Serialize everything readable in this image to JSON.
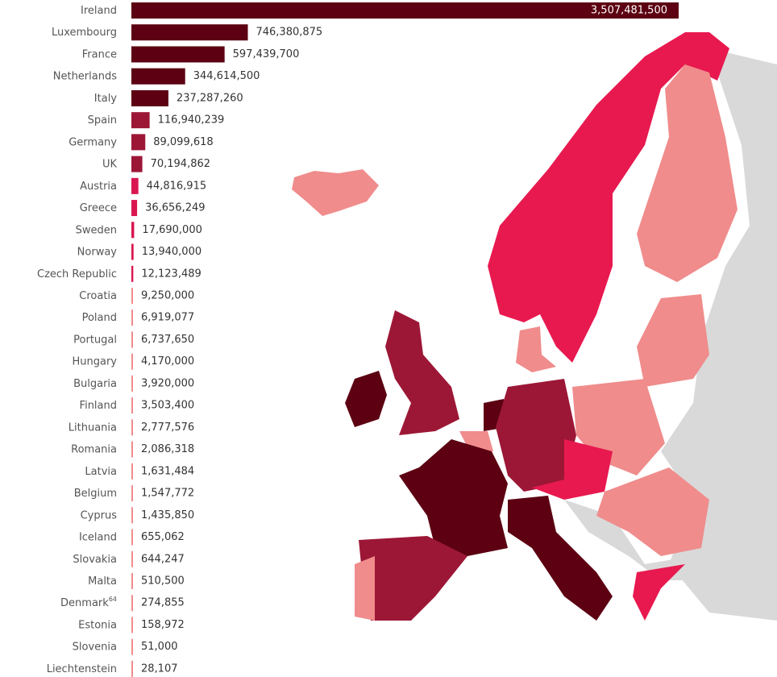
{
  "chart_data": {
    "type": "bar",
    "orientation": "horizontal",
    "categories": [
      "Ireland",
      "Luxembourg",
      "France",
      "Netherlands",
      "Italy",
      "Spain",
      "Germany",
      "UK",
      "Austria",
      "Greece",
      "Sweden",
      "Norway",
      "Czech Republic",
      "Croatia",
      "Poland",
      "Portugal",
      "Hungary",
      "Bulgaria",
      "Finland",
      "Lithuania",
      "Romania",
      "Latvia",
      "Belgium",
      "Cyprus",
      "Iceland",
      "Slovakia",
      "Malta",
      "Denmark",
      "Estonia",
      "Slovenia",
      "Liechtenstein"
    ],
    "category_notes": [
      null,
      null,
      null,
      null,
      null,
      null,
      null,
      null,
      null,
      null,
      null,
      null,
      null,
      null,
      null,
      null,
      null,
      null,
      null,
      null,
      null,
      null,
      null,
      null,
      null,
      null,
      null,
      "64",
      null,
      null,
      null
    ],
    "values": [
      3507481500,
      746380875,
      597439700,
      344614500,
      237287260,
      116940239,
      89099618,
      70194862,
      44816915,
      36656249,
      17690000,
      13940000,
      12123489,
      9250000,
      6919077,
      6737650,
      4170000,
      3920000,
      3503400,
      2777576,
      2086318,
      1631484,
      1547772,
      1435850,
      655062,
      644247,
      510500,
      274855,
      158972,
      51000,
      28107
    ],
    "value_labels": [
      "3,507,481,500",
      "746,380,875",
      "597,439,700",
      "344,614,500",
      "237,287,260",
      "116,940,239",
      "89,099,618",
      "70,194,862",
      "44,816,915",
      "36,656,249",
      "17,690,000",
      "13,940,000",
      "12,123,489",
      "9,250,000",
      "6,919,077",
      "6,737,650",
      "4,170,000",
      "3,920,000",
      "3,503,400",
      "2,777,576",
      "2,086,318",
      "1,631,484",
      "1,547,772",
      "1,435,850",
      "655,062",
      "644,247",
      "510,500",
      "274,855",
      "158,972",
      "51,000",
      "28,107"
    ],
    "colors": [
      "#5c0012",
      "#5c0012",
      "#5c0012",
      "#5c0012",
      "#5c0012",
      "#9c1736",
      "#9c1736",
      "#9c1736",
      "#d9164f",
      "#d9164f",
      "#d9164f",
      "#d9164f",
      "#d9164f",
      "#f08c8c",
      "#f08c8c",
      "#f08c8c",
      "#f08c8c",
      "#f08c8c",
      "#f08c8c",
      "#f08c8c",
      "#f08c8c",
      "#f08c8c",
      "#f08c8c",
      "#f08c8c",
      "#f08c8c",
      "#f08c8c",
      "#f08c8c",
      "#f08c8c",
      "#f08c8c",
      "#f08c8c",
      "#f08c8c"
    ]
  }
}
